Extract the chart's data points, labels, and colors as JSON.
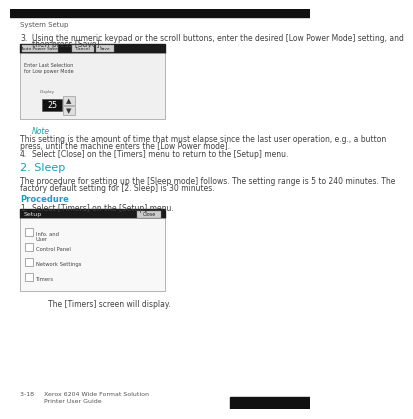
{
  "bg_color": "#ffffff",
  "header_text": "System Setup",
  "cyan_color": "#1a9fc0",
  "text_color": "#404040",
  "footer_color": "#555555",
  "fs_body": 5.5,
  "fs_note_label": 5.5,
  "fs_section": 8.0,
  "fs_procedure": 6.0,
  "fs_footer": 4.5,
  "fs_header": 5.0,
  "box1_items": [
    "Auto Power Saver",
    "Cancel",
    "Save"
  ],
  "box1_body1": "Enter Last Selection",
  "box1_body2": "for Low power Mode",
  "note_label": "Note",
  "note_line1": "This setting is the amount of time that must elapse since the last user operation, e.g., a button",
  "note_line2": "press, until the machine enters the [Low Power mode].",
  "step3_line1": "Using the numeric keypad or the scroll buttons, enter the desired [Low Power Mode] setting, and",
  "step3_line2": "then press [Save].",
  "step4": "Select [Close] on the [Timers] menu to return to the [Setup] menu.",
  "section2_title": "2. Sleep",
  "section2_line1": "The procedure for setting up the [Sleep mode] follows. The setting range is 5 to 240 minutes. The",
  "section2_line2": "factory default setting for [2. Sleep] is 30 minutes.",
  "procedure_label": "Procedure",
  "proc_step1": "Select [Timers] on the [Setup] menu.",
  "setup_menu_items": [
    "Info. and",
    "User",
    "Control Panel",
    "Network Settings",
    "Timers"
  ],
  "timers_text": "The [Timers] screen will display.",
  "footer_line1": "3-18     Xerox 6204 Wide Format Solution",
  "footer_line2": "            Printer User Guide"
}
